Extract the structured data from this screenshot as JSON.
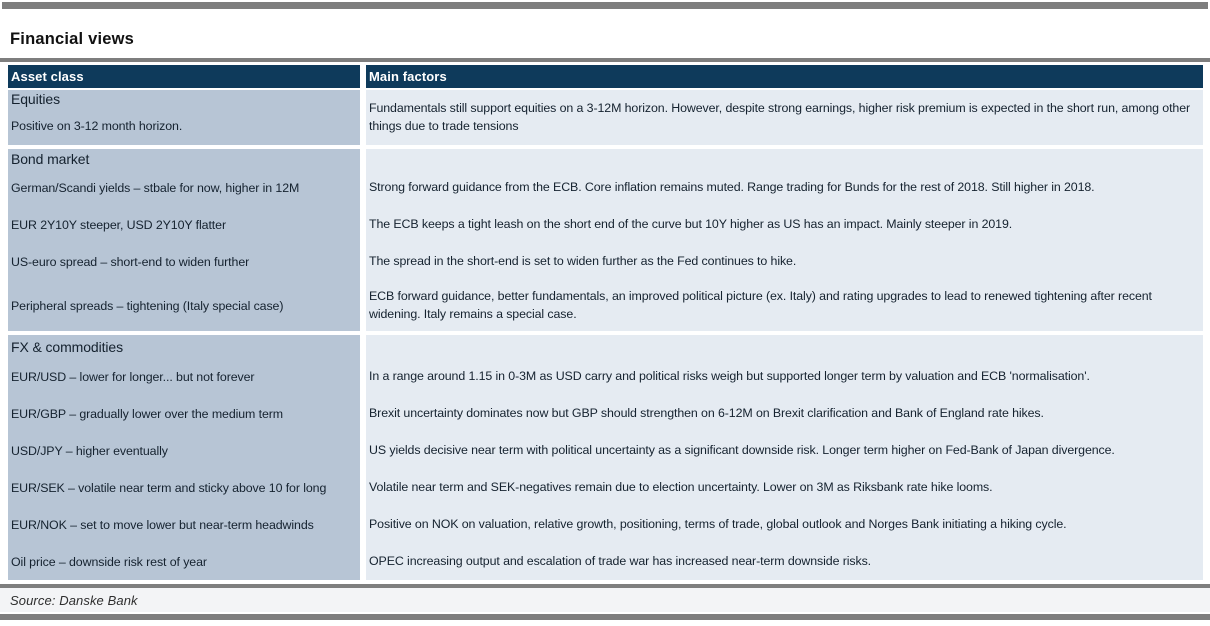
{
  "page": {
    "title": "Financial views",
    "source": "Source: Danske Bank"
  },
  "colors": {
    "header_navy": "#0e3a5b",
    "asset_cell_blue": "#b7c5d5",
    "factors_cell_blue": "#e5ebf2",
    "rule_gray": "#7e7e7e",
    "footer_gray": "#f3f4f6"
  },
  "table": {
    "headers": {
      "asset_class": "Asset class",
      "main_factors": "Main factors"
    },
    "sections": [
      {
        "name": "Equities",
        "rows": [
          {
            "asset": "Positive on 3-12 month horizon.",
            "factors": "Fundamentals still support equities on a 3-12M horizon. However, despite strong earnings, higher risk premium is expected in the short run, among other things due to trade tensions"
          }
        ]
      },
      {
        "name": "Bond market",
        "rows": [
          {
            "asset": "German/Scandi yields – stbale for now, higher in 12M",
            "factors": "Strong forward guidance from the ECB. Core inflation remains muted. Range trading for Bunds for the rest of 2018. Still higher in 2018."
          },
          {
            "asset": "EUR 2Y10Y steeper, USD 2Y10Y flatter",
            "factors": "The ECB keeps a tight leash on the short end of the curve but 10Y higher as US has an impact. Mainly steeper in 2019."
          },
          {
            "asset": "US-euro spread – short-end to widen further",
            "factors": "The spread in the short-end is set to widen further as the Fed continues to hike."
          },
          {
            "asset": "Peripheral spreads – tightening (Italy special case)",
            "factors": "ECB forward guidance, better fundamentals, an improved political picture (ex. Italy) and rating upgrades to lead to renewed tightening after recent widening. Italy remains a special case."
          }
        ]
      },
      {
        "name": "FX & commodities",
        "rows": [
          {
            "asset": "EUR/USD – lower for longer... but not forever",
            "factors": "In a range around 1.15 in 0-3M as USD carry and political risks weigh but supported longer term by valuation and ECB 'normalisation'."
          },
          {
            "asset": "EUR/GBP – gradually lower over the medium term",
            "factors": "Brexit uncertainty dominates now but GBP should strengthen on 6-12M on Brexit clarification and Bank of England rate hikes."
          },
          {
            "asset": "USD/JPY – higher eventually",
            "factors": "US yields decisive near term with political uncertainty as a significant downside risk. Longer term higher on Fed-Bank of Japan divergence."
          },
          {
            "asset": "EUR/SEK – volatile near term and sticky above 10 for long",
            "factors": "Volatile near term and SEK-negatives remain due to election uncertainty. Lower on 3M as Riksbank rate hike looms."
          },
          {
            "asset": "EUR/NOK – set to move lower but near-term headwinds",
            "factors": "Positive on NOK on valuation, relative growth, positioning, terms of trade, global outlook and Norges Bank initiating a hiking cycle."
          },
          {
            "asset": "Oil price – downside risk rest of year",
            "factors": "OPEC increasing output and escalation of trade war has increased near-term downside risks."
          }
        ]
      }
    ]
  }
}
